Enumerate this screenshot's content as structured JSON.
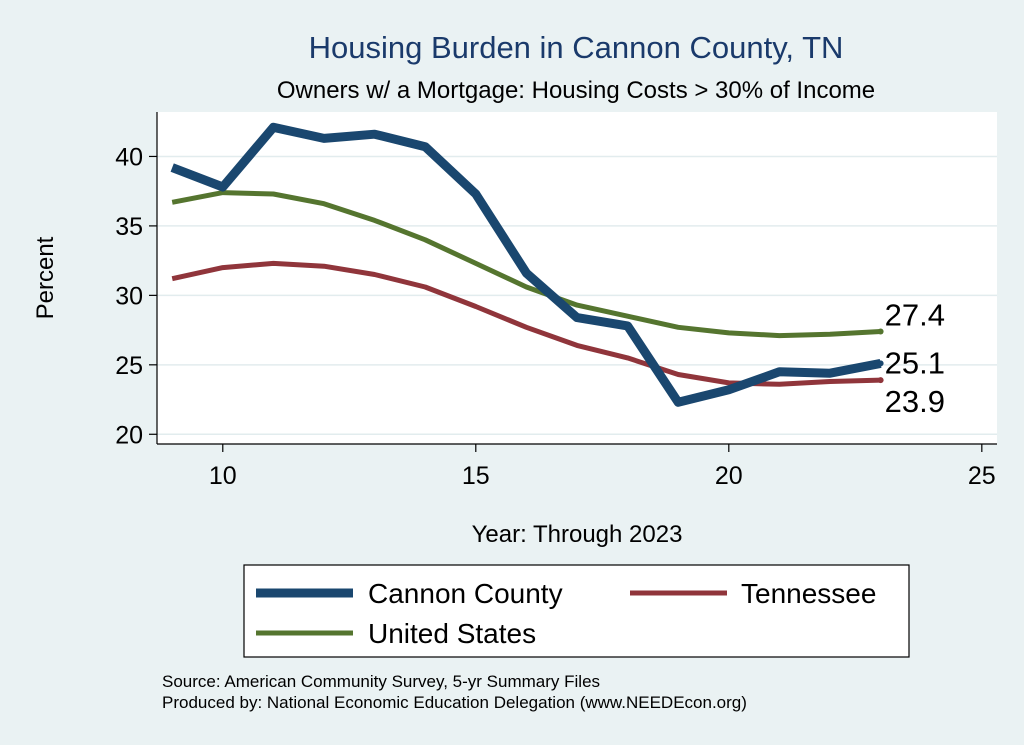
{
  "chart_data": {
    "type": "line",
    "title": "Housing Burden in Cannon County, TN",
    "subtitle": "Owners w/ a Mortgage: Housing Costs > 30% of Income",
    "xlabel": "Year: Through 2023",
    "ylabel": "Percent",
    "xlim": [
      8.7,
      25.3
    ],
    "ylim": [
      19.3,
      43.2
    ],
    "xticks": [
      10,
      15,
      20,
      25
    ],
    "yticks": [
      20,
      25,
      30,
      35,
      40
    ],
    "grid": true,
    "legend_position": "bottom",
    "x": [
      9,
      10,
      11,
      12,
      13,
      14,
      15,
      16,
      17,
      18,
      19,
      20,
      21,
      22,
      23
    ],
    "series": [
      {
        "name": "Cannon County",
        "color": "#1a476f",
        "values": [
          39.2,
          37.8,
          42.1,
          41.3,
          41.6,
          40.7,
          37.3,
          31.6,
          28.4,
          27.8,
          22.3,
          23.2,
          24.5,
          24.4,
          25.1
        ],
        "end_label": "25.1"
      },
      {
        "name": "Tennessee",
        "color": "#90353b",
        "values": [
          31.2,
          32.0,
          32.3,
          32.1,
          31.5,
          30.6,
          29.2,
          27.7,
          26.4,
          25.5,
          24.3,
          23.7,
          23.6,
          23.8,
          23.9
        ],
        "end_label": "23.9"
      },
      {
        "name": "United States",
        "color": "#55752f",
        "values": [
          36.7,
          37.4,
          37.3,
          36.6,
          35.4,
          34.0,
          32.3,
          30.6,
          29.3,
          28.5,
          27.7,
          27.3,
          27.1,
          27.2,
          27.4
        ],
        "end_label": "27.4"
      }
    ],
    "notes": [
      "Source: American Community Survey, 5-yr Summary Files",
      "Produced by: National Economic Education Delegation (www.NEEDEcon.org)"
    ]
  }
}
